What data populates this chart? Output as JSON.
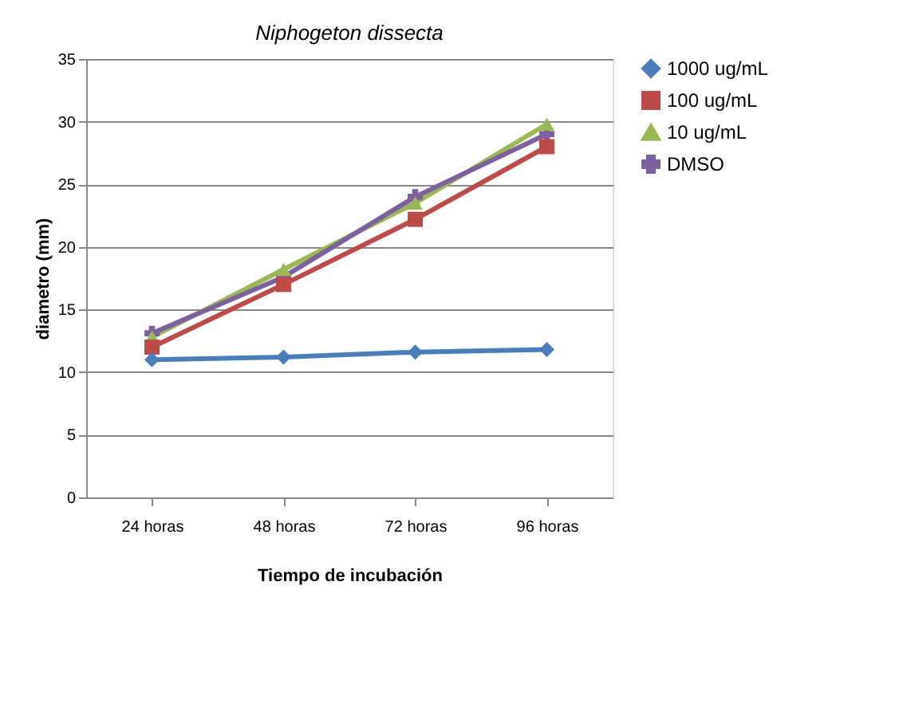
{
  "chart_data": {
    "type": "line",
    "title": "Niphogeton dissecta",
    "xlabel": "Tiempo de incubación",
    "ylabel": "diametro (mm)",
    "categories": [
      "24 horas",
      "48 horas",
      "72 horas",
      "96 horas"
    ],
    "series": [
      {
        "name": "1000 ug/mL",
        "color": "#4a7ebb",
        "marker": "diamond",
        "values": [
          11,
          11.2,
          11.6,
          11.8
        ]
      },
      {
        "name": "100 ug/mL",
        "color": "#be4b48",
        "marker": "square",
        "values": [
          12,
          17,
          22.2,
          28
        ]
      },
      {
        "name": "10 ug/mL",
        "color": "#98b954",
        "marker": "triangle",
        "values": [
          12.8,
          18.2,
          23.5,
          29.8
        ]
      },
      {
        "name": "DMSO",
        "color": "#7d60a0",
        "marker": "cross",
        "values": [
          13.1,
          17.6,
          24,
          29
        ]
      }
    ],
    "ylim": [
      0,
      35
    ],
    "yticks": [
      0,
      5,
      10,
      15,
      20,
      25,
      30,
      35
    ],
    "grid": "y",
    "legend": "right",
    "line_style": "solid"
  }
}
